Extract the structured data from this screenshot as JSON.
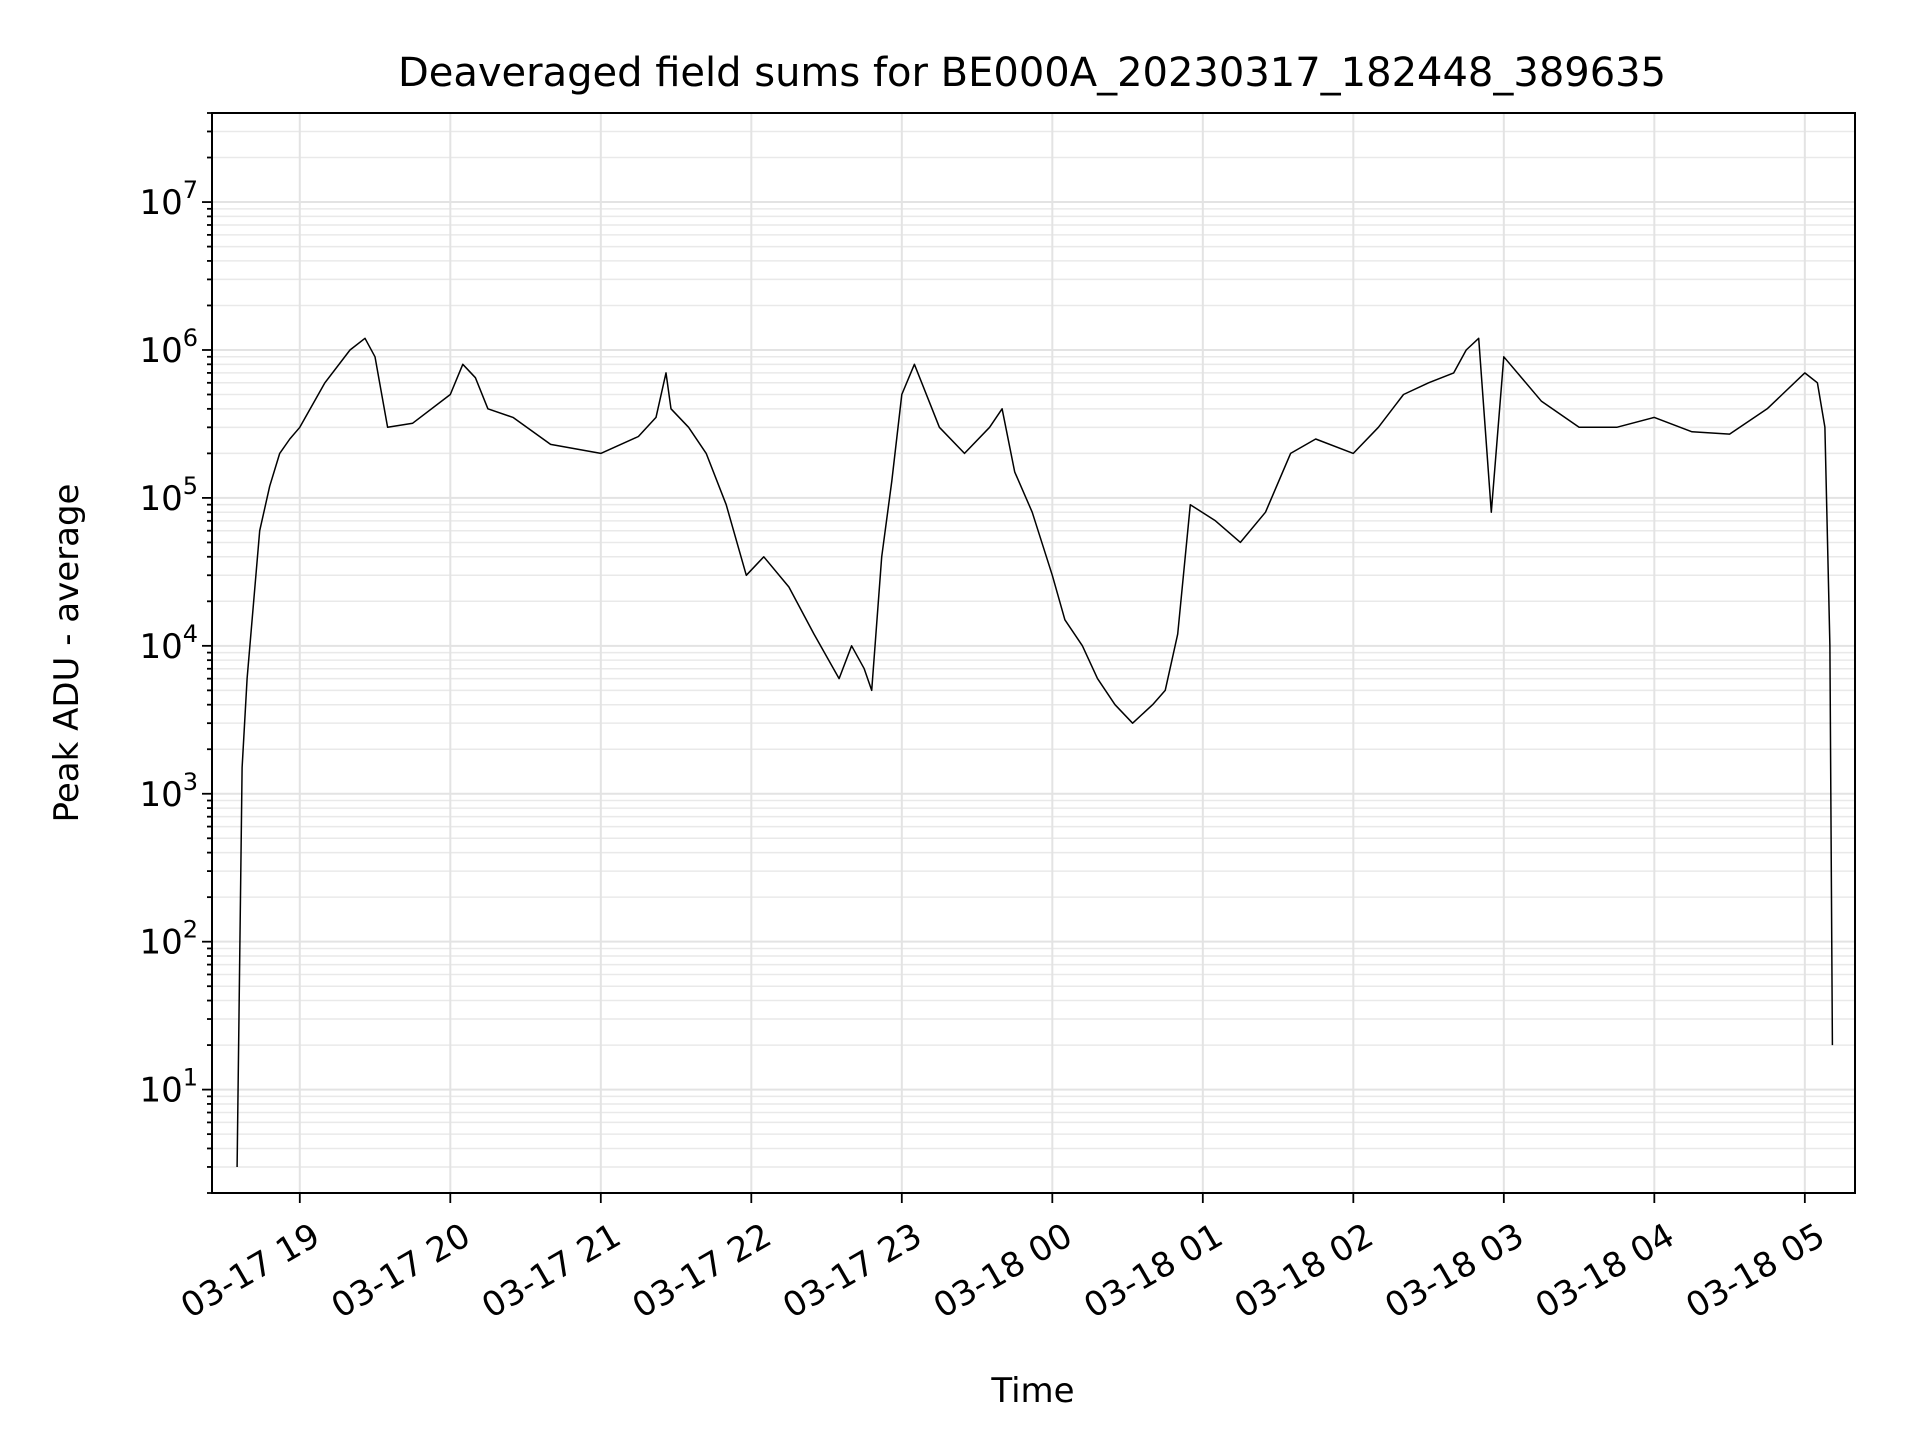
{
  "chart_data": {
    "type": "line",
    "title": "Deaveraged field sums for BE000A_20230317_182448_389635",
    "xlabel": "Time",
    "ylabel": "Peak ADU - average",
    "y_scale": "log",
    "ylim": [
      2,
      40000000
    ],
    "xlim": [
      "2023-03-17 18:25",
      "2023-03-18 05:20"
    ],
    "grid": "major and minor, light gray",
    "legend": "none",
    "line_color": "#000000",
    "x_ticks": [
      {
        "value": "2023-03-17 19:00",
        "label": "03-17 19"
      },
      {
        "value": "2023-03-17 20:00",
        "label": "03-17 20"
      },
      {
        "value": "2023-03-17 21:00",
        "label": "03-17 21"
      },
      {
        "value": "2023-03-17 22:00",
        "label": "03-17 22"
      },
      {
        "value": "2023-03-17 23:00",
        "label": "03-17 23"
      },
      {
        "value": "2023-03-18 00:00",
        "label": "03-18 00"
      },
      {
        "value": "2023-03-18 01:00",
        "label": "03-18 01"
      },
      {
        "value": "2023-03-18 02:00",
        "label": "03-18 02"
      },
      {
        "value": "2023-03-18 03:00",
        "label": "03-18 03"
      },
      {
        "value": "2023-03-18 04:00",
        "label": "03-18 04"
      },
      {
        "value": "2023-03-18 05:00",
        "label": "03-18 05"
      }
    ],
    "y_ticks": [
      {
        "value": 10,
        "base": "10",
        "exp": "1"
      },
      {
        "value": 100,
        "base": "10",
        "exp": "2"
      },
      {
        "value": 1000,
        "base": "10",
        "exp": "3"
      },
      {
        "value": 10000,
        "base": "10",
        "exp": "4"
      },
      {
        "value": 100000,
        "base": "10",
        "exp": "5"
      },
      {
        "value": 1000000,
        "base": "10",
        "exp": "6"
      },
      {
        "value": 10000000,
        "base": "10",
        "exp": "7"
      }
    ],
    "series": [
      {
        "x": [
          "2023-03-17 18:35",
          "2023-03-17 18:37",
          "2023-03-17 18:39",
          "2023-03-17 18:41",
          "2023-03-17 18:44",
          "2023-03-17 18:48",
          "2023-03-17 18:52",
          "2023-03-17 18:56",
          "2023-03-17 19:00",
          "2023-03-17 19:10",
          "2023-03-17 19:20",
          "2023-03-17 19:26",
          "2023-03-17 19:30",
          "2023-03-17 19:35",
          "2023-03-17 19:45",
          "2023-03-17 20:00",
          "2023-03-17 20:05",
          "2023-03-17 20:10",
          "2023-03-17 20:15",
          "2023-03-17 20:25",
          "2023-03-17 20:40",
          "2023-03-17 21:00",
          "2023-03-17 21:15",
          "2023-03-17 21:22",
          "2023-03-17 21:26",
          "2023-03-17 21:28",
          "2023-03-17 21:35",
          "2023-03-17 21:42",
          "2023-03-17 21:50",
          "2023-03-17 21:58",
          "2023-03-17 22:05",
          "2023-03-17 22:15",
          "2023-03-17 22:25",
          "2023-03-17 22:35",
          "2023-03-17 22:40",
          "2023-03-17 22:45",
          "2023-03-17 22:48",
          "2023-03-17 22:52",
          "2023-03-17 22:56",
          "2023-03-17 23:00",
          "2023-03-17 23:05",
          "2023-03-17 23:15",
          "2023-03-17 23:25",
          "2023-03-17 23:35",
          "2023-03-17 23:40",
          "2023-03-17 23:45",
          "2023-03-17 23:52",
          "2023-03-18 00:00",
          "2023-03-18 00:05",
          "2023-03-18 00:12",
          "2023-03-18 00:18",
          "2023-03-18 00:25",
          "2023-03-18 00:32",
          "2023-03-18 00:40",
          "2023-03-18 00:45",
          "2023-03-18 00:50",
          "2023-03-18 00:55",
          "2023-03-18 01:05",
          "2023-03-18 01:15",
          "2023-03-18 01:25",
          "2023-03-18 01:35",
          "2023-03-18 01:45",
          "2023-03-18 02:00",
          "2023-03-18 02:10",
          "2023-03-18 02:20",
          "2023-03-18 02:30",
          "2023-03-18 02:40",
          "2023-03-18 02:45",
          "2023-03-18 02:50",
          "2023-03-18 02:55",
          "2023-03-18 03:00",
          "2023-03-18 03:15",
          "2023-03-18 03:30",
          "2023-03-18 03:45",
          "2023-03-18 04:00",
          "2023-03-18 04:15",
          "2023-03-18 04:30",
          "2023-03-18 04:45",
          "2023-03-18 05:00",
          "2023-03-18 05:05",
          "2023-03-18 05:08",
          "2023-03-18 05:10",
          "2023-03-18 05:11"
        ],
        "values": [
          3,
          1500,
          6000,
          15000,
          60000,
          120000,
          200000,
          250000,
          300000,
          600000,
          1000000,
          1200000,
          900000,
          300000,
          320000,
          500000,
          800000,
          650000,
          400000,
          350000,
          230000,
          200000,
          260000,
          350000,
          700000,
          400000,
          300000,
          200000,
          90000,
          30000,
          40000,
          25000,
          12000,
          6000,
          10000,
          7000,
          5000,
          40000,
          130000,
          500000,
          800000,
          300000,
          200000,
          300000,
          400000,
          150000,
          80000,
          30000,
          15000,
          10000,
          6000,
          4000,
          3000,
          4000,
          5000,
          12000,
          90000,
          70000,
          50000,
          80000,
          200000,
          250000,
          200000,
          300000,
          500000,
          600000,
          700000,
          1000000,
          1200000,
          80000,
          900000,
          450000,
          300000,
          300000,
          350000,
          280000,
          270000,
          400000,
          700000,
          600000,
          300000,
          10000,
          20
        ]
      }
    ]
  }
}
